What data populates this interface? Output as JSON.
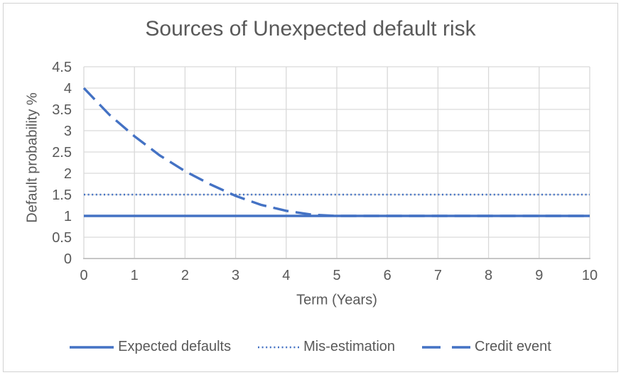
{
  "chart_data": {
    "type": "line",
    "title": "Sources of Unexpected default risk",
    "xlabel": "Term (Years)",
    "ylabel": "Default probability %",
    "xlim": [
      0,
      10
    ],
    "ylim": [
      0,
      4.5
    ],
    "x_ticks": [
      0,
      1,
      2,
      3,
      4,
      5,
      6,
      7,
      8,
      9,
      10
    ],
    "y_ticks": [
      0,
      0.5,
      1,
      1.5,
      2,
      2.5,
      3,
      3.5,
      4,
      4.5
    ],
    "grid": true,
    "legend_position": "bottom",
    "series": [
      {
        "name": "Expected defaults",
        "style": "solid",
        "color": "#4472C4",
        "x": [
          0,
          10
        ],
        "y": [
          1,
          1
        ]
      },
      {
        "name": "Mis-estimation",
        "style": "dotted",
        "color": "#4472C4",
        "x": [
          0,
          10
        ],
        "y": [
          1.5,
          1.5
        ]
      },
      {
        "name": "Credit event",
        "style": "dashed",
        "color": "#4472C4",
        "x": [
          0,
          0.5,
          1,
          1.5,
          2,
          2.5,
          3,
          3.5,
          4,
          4.5,
          5,
          6,
          7,
          8,
          9,
          10
        ],
        "y": [
          4,
          3.38,
          2.87,
          2.42,
          2.05,
          1.74,
          1.47,
          1.26,
          1.12,
          1.03,
          1,
          1,
          1,
          1,
          1,
          1
        ]
      }
    ],
    "colors": {
      "line_blue": "#4472C4",
      "text_gray": "#595959",
      "gridline": "#D9D9D9",
      "axis_line": "#BFBFBF",
      "frame_border": "#D2D2D2",
      "background": "#FFFFFF"
    }
  }
}
